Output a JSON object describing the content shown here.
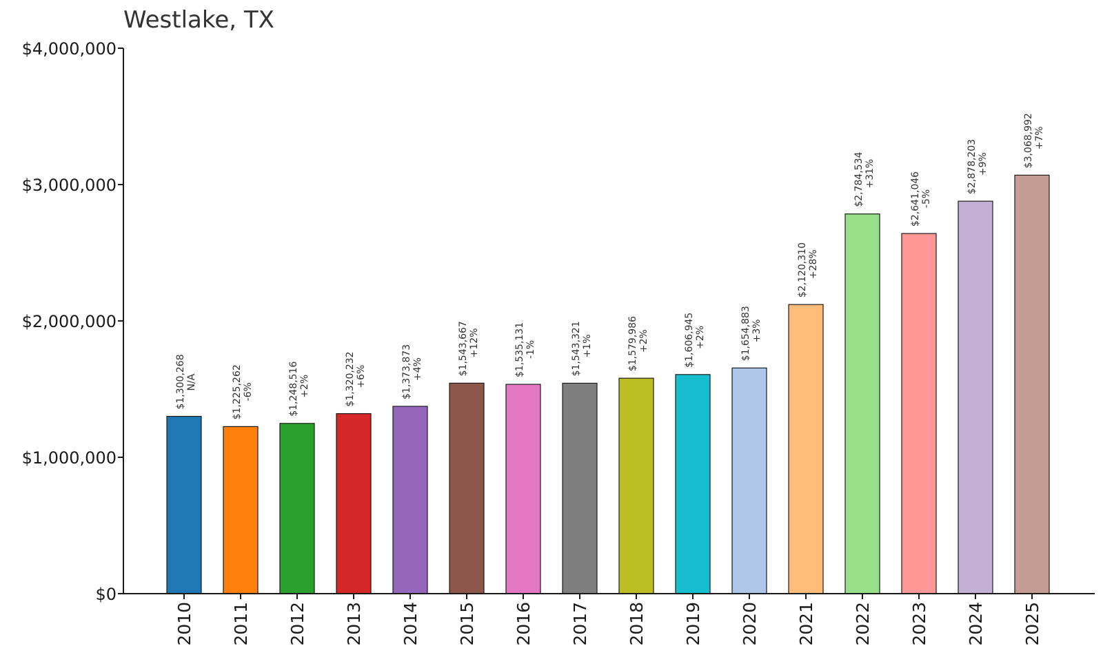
{
  "chart_data": {
    "type": "bar",
    "title": "Westlake, TX",
    "xlabel": "",
    "ylabel": "",
    "ylim": [
      0,
      4000000
    ],
    "yticks": [
      0,
      1000000,
      2000000,
      3000000,
      4000000
    ],
    "ytick_labels": [
      "$0",
      "$1,000,000",
      "$2,000,000",
      "$3,000,000",
      "$4,000,000"
    ],
    "grid": false,
    "categories": [
      "2010",
      "2011",
      "2012",
      "2013",
      "2014",
      "2015",
      "2016",
      "2017",
      "2018",
      "2019",
      "2020",
      "2021",
      "2022",
      "2023",
      "2024",
      "2025"
    ],
    "values": [
      1300268,
      1225262,
      1248516,
      1320232,
      1373873,
      1543667,
      1535131,
      1543321,
      1579986,
      1606945,
      1654883,
      2120310,
      2784534,
      2641046,
      2878203,
      3068992
    ],
    "value_labels": [
      "$1,300,268",
      "$1,225,262",
      "$1,248,516",
      "$1,320,232",
      "$1,373,873",
      "$1,543,667",
      "$1,535,131",
      "$1,543,321",
      "$1,579,986",
      "$1,606,945",
      "$1,654,883",
      "$2,120,310",
      "$2,784,534",
      "$2,641,046",
      "$2,878,203",
      "$3,068,992"
    ],
    "change_labels": [
      "N/A",
      "-6%",
      "+2%",
      "+6%",
      "+4%",
      "+12%",
      "-1%",
      "+1%",
      "+2%",
      "+2%",
      "+3%",
      "+28%",
      "+31%",
      "-5%",
      "+9%",
      "+7%"
    ],
    "colors": [
      "#1f77b4",
      "#ff7f0e",
      "#2ca02c",
      "#d62728",
      "#9467bd",
      "#8c564b",
      "#e377c2",
      "#7f7f7f",
      "#bcbd22",
      "#17becf",
      "#aec7e8",
      "#ffbb78",
      "#98df8a",
      "#ff9896",
      "#c5b0d5",
      "#c49c94"
    ]
  }
}
